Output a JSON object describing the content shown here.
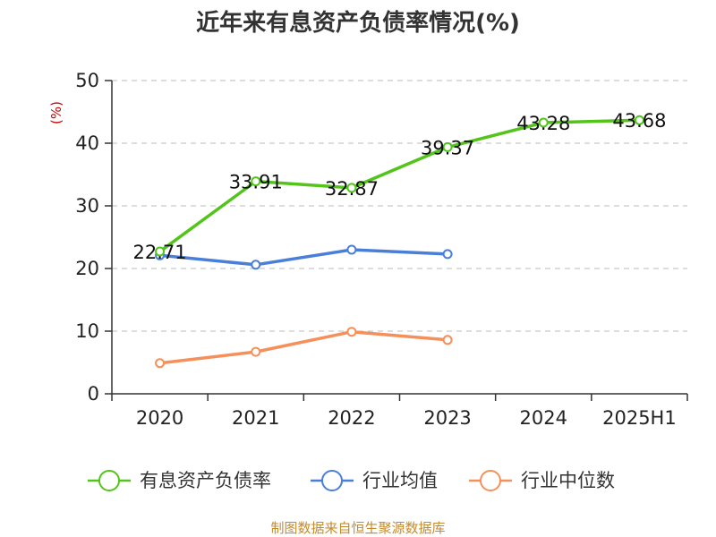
{
  "chart_data": {
    "type": "line",
    "title": "近年来有息资产负债率情况(%)",
    "ylabel": "(%)",
    "xlabel": "",
    "categories": [
      "2020",
      "2021",
      "2022",
      "2023",
      "2024",
      "2025H1"
    ],
    "ylim": [
      0,
      50
    ],
    "yticks": [
      0,
      10,
      20,
      30,
      40,
      50
    ],
    "grid": true,
    "legend_position": "bottom",
    "series": [
      {
        "name": "有息资产负债率",
        "color": "#52c41a",
        "values": [
          22.71,
          33.91,
          32.87,
          39.37,
          43.28,
          43.68
        ],
        "show_labels": true
      },
      {
        "name": "行业均值",
        "color": "#4a7fd9",
        "values": [
          22.1,
          20.6,
          23.0,
          22.3,
          null,
          null
        ],
        "show_labels": false
      },
      {
        "name": "行业中位数",
        "color": "#f5905a",
        "values": [
          4.9,
          6.7,
          9.9,
          8.6,
          null,
          null
        ],
        "show_labels": false
      }
    ],
    "unit_color": "#cc0000"
  },
  "source_text": "制图数据来自恒生聚源数据库",
  "source_color": "#c58a2b"
}
